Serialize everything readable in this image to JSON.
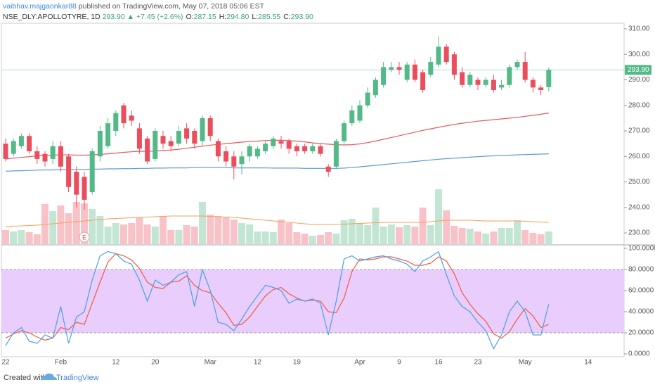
{
  "header": {
    "author": "vaibhav.majgaonkar88",
    "published": "published on TradingView.com, May 07, 2018 05:06 EST"
  },
  "footer": {
    "created": "Created with",
    "brand": "TradingView"
  },
  "chart_data": [
    {
      "type": "candlestick",
      "symbol": "NSE_DLY:APOLLOTYRE, 1D",
      "price": "293.90",
      "change": "▲ +7.45 (+2.6%)",
      "ohlc_legend": [
        {
          "label": "O:",
          "value": "287.15"
        },
        {
          "label": "H:",
          "value": "294.80"
        },
        {
          "label": "L:",
          "value": "285.55"
        },
        {
          "label": "C:",
          "value": "293.90"
        }
      ],
      "categories": [
        "22",
        null,
        null,
        null,
        null,
        null,
        null,
        "Feb",
        null,
        null,
        null,
        null,
        null,
        null,
        "12",
        null,
        null,
        null,
        null,
        "20",
        null,
        null,
        null,
        null,
        null,
        null,
        "Mar",
        null,
        null,
        null,
        null,
        null,
        "12",
        null,
        null,
        null,
        null,
        "19",
        null,
        null,
        null,
        null,
        null,
        null,
        null,
        "Apr",
        null,
        null,
        null,
        null,
        "9",
        null,
        null,
        null,
        null,
        "16",
        null,
        null,
        null,
        null,
        "23",
        null,
        null,
        null,
        null,
        null,
        "May",
        null,
        null,
        null,
        null,
        null,
        null,
        null,
        "14"
      ],
      "open": [
        265,
        261,
        264,
        268,
        262,
        261,
        259,
        264,
        260,
        254,
        252,
        246,
        260,
        264,
        270,
        280,
        276,
        271,
        267,
        259,
        268,
        266,
        265,
        271,
        270,
        266,
        275,
        266,
        262,
        260,
        257,
        260,
        260,
        262,
        264,
        266,
        266,
        264,
        264,
        262,
        264,
        256,
        256,
        266,
        273,
        274,
        280,
        284,
        288,
        294,
        295,
        290,
        296,
        293,
        292,
        296,
        303,
        300,
        293,
        288,
        290,
        288,
        290,
        287,
        288,
        295,
        297,
        290,
        287,
        287.15,
        null,
        null,
        null,
        null,
        null
      ],
      "high": [
        267,
        267,
        269,
        269,
        264,
        262,
        266,
        266,
        261,
        256,
        254,
        263,
        272,
        275,
        278,
        281,
        278,
        273,
        268,
        271,
        270,
        268,
        272,
        273,
        271,
        276,
        276,
        267,
        264,
        262,
        262,
        265,
        264,
        266,
        268,
        268,
        267,
        265,
        265,
        265,
        265,
        257,
        267,
        274,
        280,
        282,
        287,
        291,
        297,
        297,
        297,
        297,
        298,
        294,
        299,
        307,
        304,
        301,
        295,
        293,
        291,
        291,
        292,
        290,
        296,
        298,
        301,
        291,
        288,
        294.8,
        null,
        null,
        null,
        null,
        null
      ],
      "low": [
        258,
        260,
        263,
        261,
        257,
        256,
        257,
        254,
        246,
        240,
        239,
        245,
        258,
        263,
        268,
        271,
        272,
        261,
        257,
        258,
        263,
        262,
        264,
        265,
        263,
        264,
        266,
        258,
        256,
        251,
        253,
        258,
        259,
        261,
        263,
        263,
        261,
        260,
        261,
        261,
        260,
        252,
        255,
        265,
        272,
        273,
        279,
        283,
        287,
        293,
        292,
        289,
        289,
        285,
        291,
        295,
        296,
        290,
        287,
        287,
        286,
        287,
        285,
        286,
        287,
        294,
        289,
        285,
        284,
        285.55,
        null,
        null,
        null,
        null,
        null
      ],
      "close": [
        259,
        266,
        268,
        262,
        259,
        258,
        264,
        256,
        248,
        245,
        243,
        262,
        270,
        273,
        277,
        273,
        274,
        263,
        258,
        270,
        265,
        264,
        270,
        267,
        265,
        275,
        268,
        260,
        258,
        256,
        260,
        264,
        263,
        265,
        267,
        265,
        263,
        262,
        262,
        264,
        261,
        254,
        266,
        273,
        278,
        280,
        285,
        290,
        295,
        295,
        294,
        296,
        290,
        286,
        297,
        303,
        297,
        292,
        288,
        292,
        288,
        290,
        286,
        288,
        295,
        297,
        290,
        287,
        286,
        293.9,
        null,
        null,
        null,
        null,
        null
      ],
      "up_color": "#53b987",
      "down_color": "#eb4d5c",
      "volume_up_color": "#c3e6d4",
      "volume_down_color": "#f7c3c8",
      "ylim": [
        225.6,
        312.2
      ],
      "yticks": [
        {
          "value": 230,
          "label": "230.00"
        },
        {
          "value": 240,
          "label": "240.00"
        },
        {
          "value": 250,
          "label": "250.00"
        },
        {
          "value": 260,
          "label": "260.00"
        },
        {
          "value": 270,
          "label": "270.00"
        },
        {
          "value": 280,
          "label": "280.00"
        },
        {
          "value": 290,
          "label": "290.00"
        },
        {
          "value": 300,
          "label": "300.00"
        },
        {
          "value": 310,
          "label": "310.00"
        }
      ],
      "last_price": {
        "value": 293.9,
        "label": "293.90",
        "color": "#53b987"
      },
      "moving_averages": [
        {
          "color": "#e8575e",
          "values": [
            259,
            259.3,
            259.6,
            259.9,
            260.2,
            260.4,
            260.5,
            260.6,
            260.6,
            260.5,
            260.5,
            260.6,
            260.8,
            261,
            261.3,
            261.6,
            261.8,
            262,
            262,
            262.1,
            262.3,
            262.5,
            262.8,
            263.2,
            263.6,
            264,
            264.4,
            264.7,
            265,
            265.3,
            265.6,
            265.8,
            266,
            266.2,
            266.3,
            266.3,
            266.2,
            266,
            265.7,
            265.3,
            265,
            264.8,
            264.6,
            264.5,
            264.6,
            264.9,
            265.4,
            266,
            266.7,
            267.4,
            268.1,
            268.8,
            269.5,
            270.2,
            270.8,
            271.4,
            272,
            272.5,
            273,
            273.4,
            273.8,
            274.1,
            274.4,
            274.7,
            275,
            275.3,
            275.7,
            276.1,
            276.5,
            277,
            null,
            null,
            null,
            null,
            null
          ]
        },
        {
          "color": "#5b9bd5",
          "values": [
            254.2,
            254.3,
            254.4,
            254.5,
            254.6,
            254.7,
            254.7,
            254.8,
            254.8,
            254.9,
            254.9,
            255,
            255,
            255.1,
            255.1,
            255.2,
            255.2,
            255.3,
            255.3,
            255.4,
            255.4,
            255.5,
            255.5,
            255.5,
            255.6,
            255.6,
            255.6,
            255.6,
            255.6,
            255.5,
            255.5,
            255.5,
            255.5,
            255.5,
            255.4,
            255.4,
            255.4,
            255.4,
            255.3,
            255.3,
            255.3,
            255.3,
            255.3,
            255.4,
            255.6,
            255.9,
            256.2,
            256.5,
            256.8,
            257.1,
            257.4,
            257.7,
            258,
            258.3,
            258.6,
            258.9,
            259.1,
            259.3,
            259.5,
            259.7,
            259.9,
            260.1,
            260.2,
            260.4,
            260.5,
            260.6,
            260.7,
            260.8,
            260.9,
            261,
            null,
            null,
            null,
            null,
            null
          ]
        }
      ],
      "volume": [
        20,
        18,
        20,
        17,
        14,
        57,
        47,
        55,
        44,
        60,
        58,
        50,
        40,
        25,
        30,
        28,
        30,
        38,
        28,
        25,
        40,
        20,
        20,
        27,
        25,
        60,
        42,
        40,
        38,
        35,
        30,
        28,
        18,
        18,
        17,
        35,
        30,
        17,
        15,
        12,
        13,
        17,
        15,
        34,
        36,
        30,
        27,
        52,
        25,
        28,
        24,
        27,
        25,
        52,
        27,
        78,
        48,
        26,
        23,
        22,
        18,
        15,
        18,
        23,
        23,
        34,
        20,
        16,
        14,
        18,
        null,
        null,
        null,
        null,
        null
      ],
      "volume_ma": [
        25,
        25.5,
        26,
        26.5,
        27,
        28,
        29,
        30,
        31,
        32,
        33,
        34,
        35,
        36,
        36.5,
        37,
        37.5,
        38,
        38.5,
        39,
        39.5,
        40,
        40,
        40,
        40,
        40,
        39.5,
        39,
        38.5,
        38,
        37,
        36,
        35,
        34,
        33,
        32,
        31,
        30,
        29,
        28,
        28,
        28,
        28,
        28.5,
        29,
        29.5,
        30,
        30.5,
        31,
        31,
        31,
        31,
        31,
        31,
        32,
        33,
        34,
        34,
        34,
        34,
        33.5,
        33,
        33,
        33,
        33,
        33,
        32.5,
        32,
        31.5,
        31,
        null,
        null,
        null,
        null,
        null
      ],
      "volume_ma_color": "#f5a05a",
      "earnings": {
        "text": "E",
        "category": 10
      }
    },
    {
      "type": "line",
      "series": [
        {
          "color": "#4a9fe8",
          "values": [
            8,
            20,
            25,
            12,
            10,
            18,
            15,
            45,
            10,
            35,
            40,
            70,
            93,
            97,
            95,
            88,
            85,
            70,
            50,
            70,
            65,
            68,
            75,
            78,
            45,
            80,
            60,
            30,
            28,
            22,
            33,
            45,
            55,
            65,
            63,
            60,
            48,
            52,
            50,
            52,
            48,
            18,
            50,
            90,
            93,
            88,
            90,
            92,
            93,
            90,
            88,
            85,
            78,
            88,
            92,
            97,
            75,
            55,
            45,
            40,
            30,
            22,
            5,
            18,
            40,
            50,
            40,
            18,
            18,
            47,
            null,
            null,
            null,
            null,
            null
          ]
        },
        {
          "color": "#f2593f",
          "values": [
            15,
            19,
            22,
            20,
            16,
            13,
            15,
            25,
            23,
            30,
            28,
            48,
            68,
            87,
            95,
            93,
            89,
            81,
            68,
            63,
            62,
            68,
            69,
            74,
            65,
            60,
            58,
            48,
            39,
            27,
            28,
            35,
            45,
            55,
            61,
            63,
            57,
            53,
            50,
            51,
            50,
            40,
            39,
            53,
            78,
            90,
            89,
            90,
            92,
            92,
            90,
            88,
            84,
            84,
            86,
            92,
            88,
            76,
            58,
            47,
            38,
            31,
            19,
            15,
            21,
            33,
            43,
            36,
            25,
            28,
            null,
            null,
            null,
            null,
            null
          ]
        }
      ],
      "ylim": [
        -2.67,
        102.67
      ],
      "yticks": [
        {
          "value": 0,
          "label": "0.0000"
        },
        {
          "value": 20,
          "label": "20.0000"
        },
        {
          "value": 40,
          "label": "40.0000"
        },
        {
          "value": 60,
          "label": "60.0000"
        },
        {
          "value": 80,
          "label": "80.0000"
        },
        {
          "value": 100,
          "label": "100.0000"
        }
      ],
      "band": [
        20,
        80
      ],
      "band_color": "#e9cdfd"
    }
  ]
}
